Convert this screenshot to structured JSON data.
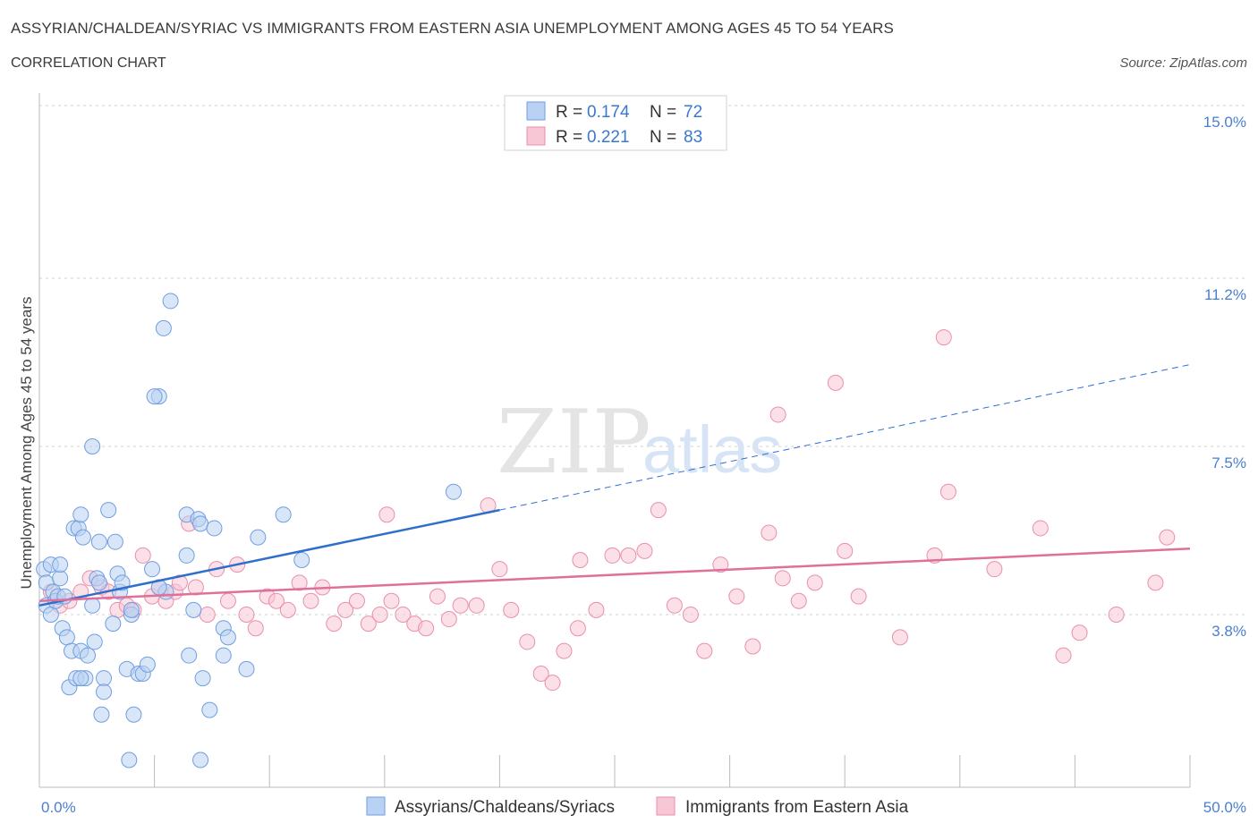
{
  "title": "ASSYRIAN/CHALDEAN/SYRIAC VS IMMIGRANTS FROM EASTERN ASIA UNEMPLOYMENT AMONG AGES 45 TO 54 YEARS",
  "subtitle": "CORRELATION CHART",
  "source": "Source: ZipAtlas.com",
  "watermark": {
    "zip": "ZIP",
    "atlas": "atlas"
  },
  "legend": {
    "r_label": "R =",
    "n_label": "N =",
    "rows": [
      {
        "r": "0.174",
        "n": "72"
      },
      {
        "r": "0.221",
        "n": "83"
      }
    ]
  },
  "colors": {
    "blue_fill": "#b9d2f3",
    "blue_stroke": "#6f9ee0",
    "blue_line": "#2f6fcc",
    "pink_fill": "#f8c7d6",
    "pink_stroke": "#e98fac",
    "pink_line": "#e0709a",
    "grid": "#d0d0d0",
    "tick_label": "#4a7fd0"
  },
  "chart_data": {
    "type": "scatter",
    "title": "ASSYRIAN/CHALDEAN/SYRIAC VS IMMIGRANTS FROM EASTERN ASIA UNEMPLOYMENT AMONG AGES 45 TO 54 YEARS",
    "xlabel": "",
    "ylabel": "Unemployment Among Ages 45 to 54 years",
    "xlim": [
      0,
      50
    ],
    "ylim": [
      0,
      15
    ],
    "x_tick_labels": [
      "0.0%",
      "50.0%"
    ],
    "y_ticks": [
      3.8,
      7.5,
      11.2,
      15.0
    ],
    "y_tick_labels": [
      "3.8%",
      "7.5%",
      "11.2%",
      "15.0%"
    ],
    "grid": "horizontal dashed",
    "legend_placement": "top-center",
    "series": [
      {
        "name": "Assyrians/Chaldeans/Syriacs",
        "color": "blue",
        "r": 0.174,
        "n": 72,
        "trend": {
          "x0": 0,
          "y0": 4.0,
          "x1": 20,
          "y1": 6.1,
          "dash_x1": 50,
          "dash_y1": 9.3
        },
        "points": [
          [
            0.2,
            4.8
          ],
          [
            0.3,
            4.5
          ],
          [
            0.3,
            4.0
          ],
          [
            0.5,
            4.9
          ],
          [
            0.5,
            3.8
          ],
          [
            0.6,
            4.3
          ],
          [
            0.7,
            4.1
          ],
          [
            0.8,
            4.2
          ],
          [
            0.9,
            4.6
          ],
          [
            1.0,
            3.5
          ],
          [
            1.1,
            4.2
          ],
          [
            1.2,
            3.3
          ],
          [
            1.3,
            2.2
          ],
          [
            1.4,
            3.0
          ],
          [
            1.5,
            5.7
          ],
          [
            1.6,
            2.4
          ],
          [
            1.7,
            5.7
          ],
          [
            1.8,
            3.0
          ],
          [
            1.8,
            6.0
          ],
          [
            1.9,
            5.5
          ],
          [
            2.0,
            2.4
          ],
          [
            2.1,
            2.9
          ],
          [
            2.3,
            7.5
          ],
          [
            2.3,
            4.0
          ],
          [
            2.4,
            3.2
          ],
          [
            2.5,
            4.6
          ],
          [
            2.6,
            5.4
          ],
          [
            2.7,
            1.6
          ],
          [
            2.8,
            2.4
          ],
          [
            2.8,
            2.1
          ],
          [
            3.0,
            6.1
          ],
          [
            3.2,
            3.6
          ],
          [
            3.3,
            5.4
          ],
          [
            3.4,
            4.7
          ],
          [
            3.5,
            4.3
          ],
          [
            3.6,
            4.5
          ],
          [
            3.8,
            2.6
          ],
          [
            3.9,
            0.6
          ],
          [
            4.0,
            3.8
          ],
          [
            4.0,
            3.9
          ],
          [
            4.1,
            1.6
          ],
          [
            4.3,
            2.5
          ],
          [
            4.5,
            2.5
          ],
          [
            4.7,
            2.7
          ],
          [
            4.9,
            4.8
          ],
          [
            5.2,
            8.6
          ],
          [
            5.4,
            10.1
          ],
          [
            5.7,
            10.7
          ],
          [
            5.0,
            8.6
          ],
          [
            5.5,
            4.3
          ],
          [
            5.2,
            4.4
          ],
          [
            6.4,
            6.0
          ],
          [
            6.4,
            5.1
          ],
          [
            6.5,
            2.9
          ],
          [
            6.7,
            3.9
          ],
          [
            6.9,
            5.9
          ],
          [
            7.1,
            2.4
          ],
          [
            7.4,
            1.7
          ],
          [
            7.0,
            0.6
          ],
          [
            7.0,
            5.8
          ],
          [
            7.6,
            5.7
          ],
          [
            8.0,
            3.5
          ],
          [
            8.0,
            2.9
          ],
          [
            8.2,
            3.3
          ],
          [
            9.0,
            2.6
          ],
          [
            10.6,
            6.0
          ],
          [
            9.5,
            5.5
          ],
          [
            11.4,
            5.0
          ],
          [
            18.0,
            6.5
          ],
          [
            1.8,
            2.4
          ],
          [
            2.6,
            4.5
          ],
          [
            0.9,
            4.9
          ]
        ]
      },
      {
        "name": "Immigrants from Eastern Asia",
        "color": "pink",
        "r": 0.221,
        "n": 83,
        "trend": {
          "x0": 0,
          "y0": 4.1,
          "x1": 50,
          "y1": 5.25
        },
        "points": [
          [
            0.5,
            4.3
          ],
          [
            0.9,
            4.0
          ],
          [
            1.3,
            4.1
          ],
          [
            1.8,
            4.3
          ],
          [
            2.2,
            4.6
          ],
          [
            2.7,
            4.4
          ],
          [
            3.0,
            4.3
          ],
          [
            3.4,
            3.9
          ],
          [
            3.8,
            4.0
          ],
          [
            4.1,
            3.9
          ],
          [
            4.5,
            5.1
          ],
          [
            4.9,
            4.2
          ],
          [
            5.2,
            4.4
          ],
          [
            5.5,
            4.1
          ],
          [
            5.9,
            4.3
          ],
          [
            6.1,
            4.5
          ],
          [
            6.5,
            5.8
          ],
          [
            6.8,
            4.4
          ],
          [
            7.3,
            3.8
          ],
          [
            7.7,
            4.8
          ],
          [
            8.2,
            4.1
          ],
          [
            8.6,
            4.9
          ],
          [
            9.0,
            3.8
          ],
          [
            9.4,
            3.5
          ],
          [
            9.9,
            4.2
          ],
          [
            10.3,
            4.1
          ],
          [
            10.8,
            3.9
          ],
          [
            11.3,
            4.5
          ],
          [
            11.8,
            4.1
          ],
          [
            12.3,
            4.4
          ],
          [
            12.8,
            3.6
          ],
          [
            13.3,
            3.9
          ],
          [
            13.8,
            4.1
          ],
          [
            14.3,
            3.6
          ],
          [
            14.8,
            3.8
          ],
          [
            15.3,
            4.1
          ],
          [
            15.8,
            3.8
          ],
          [
            16.3,
            3.6
          ],
          [
            16.8,
            3.5
          ],
          [
            17.3,
            4.2
          ],
          [
            17.8,
            3.7
          ],
          [
            18.3,
            4.0
          ],
          [
            19.0,
            4.0
          ],
          [
            19.5,
            6.2
          ],
          [
            20.0,
            4.8
          ],
          [
            20.5,
            3.9
          ],
          [
            21.2,
            3.2
          ],
          [
            21.8,
            2.5
          ],
          [
            22.3,
            2.3
          ],
          [
            22.8,
            3.0
          ],
          [
            23.5,
            5.0
          ],
          [
            24.2,
            3.9
          ],
          [
            24.9,
            5.1
          ],
          [
            25.6,
            5.1
          ],
          [
            26.3,
            5.2
          ],
          [
            26.9,
            6.1
          ],
          [
            27.6,
            4.0
          ],
          [
            28.3,
            3.8
          ],
          [
            28.9,
            3.0
          ],
          [
            29.6,
            4.9
          ],
          [
            30.3,
            4.2
          ],
          [
            31.0,
            3.1
          ],
          [
            31.7,
            5.6
          ],
          [
            32.3,
            4.6
          ],
          [
            33.0,
            4.1
          ],
          [
            33.7,
            4.5
          ],
          [
            35.0,
            5.2
          ],
          [
            35.6,
            4.2
          ],
          [
            37.4,
            3.3
          ],
          [
            38.9,
            5.1
          ],
          [
            39.5,
            6.5
          ],
          [
            41.5,
            4.8
          ],
          [
            43.5,
            5.7
          ],
          [
            45.2,
            3.4
          ],
          [
            46.8,
            3.8
          ],
          [
            44.5,
            2.9
          ],
          [
            49.0,
            5.5
          ],
          [
            48.5,
            4.5
          ],
          [
            23.4,
            3.5
          ],
          [
            32.1,
            8.2
          ],
          [
            34.6,
            8.9
          ],
          [
            39.3,
            9.9
          ],
          [
            15.1,
            6.0
          ]
        ]
      }
    ]
  },
  "bottom_legend": [
    {
      "label": "Assyrians/Chaldeans/Syriacs",
      "color": "blue"
    },
    {
      "label": "Immigrants from Eastern Asia",
      "color": "pink"
    }
  ]
}
